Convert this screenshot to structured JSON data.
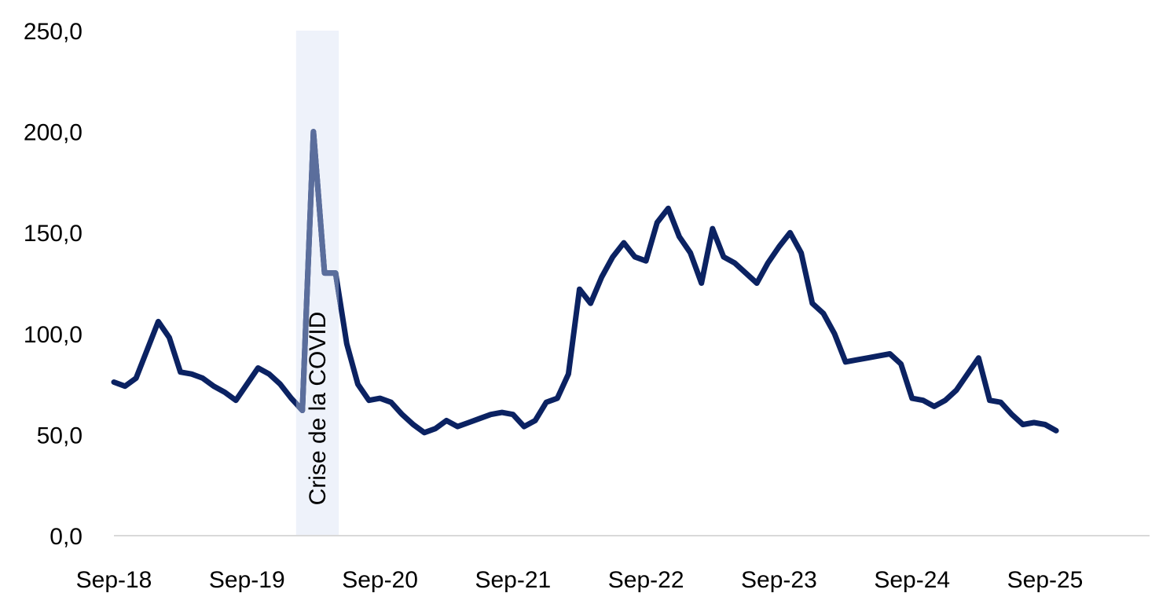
{
  "chart_data": {
    "type": "line",
    "title": "",
    "xlabel": "",
    "ylabel": "",
    "ylim": [
      0,
      250
    ],
    "y_ticks": [
      "0,0",
      "50,0",
      "100,0",
      "150,0",
      "200,0",
      "250,0"
    ],
    "y_tick_values": [
      0,
      50,
      100,
      150,
      200,
      250
    ],
    "x_ticks": [
      "Sep-18",
      "Sep-19",
      "Sep-20",
      "Sep-21",
      "Sep-22",
      "Sep-23",
      "Sep-24",
      "Sep-25"
    ],
    "x_tick_values": [
      "2018-09",
      "2019-09",
      "2020-09",
      "2021-09",
      "2022-09",
      "2023-09",
      "2024-09",
      "2025-09"
    ],
    "grid": false,
    "legend": "none",
    "colors": {
      "line": "#0b2262",
      "highlight_line": "#5b6e9c",
      "band": "#eef2fa"
    },
    "annotation": {
      "text": "Crise de la COVID",
      "start": "2020-02",
      "end": "2020-05"
    },
    "series": [
      {
        "x": [
          "2018-09",
          "2018-10",
          "2018-11",
          "2018-12",
          "2019-01",
          "2019-02",
          "2019-03",
          "2019-04",
          "2019-05",
          "2019-06",
          "2019-07",
          "2019-08",
          "2019-09",
          "2019-10",
          "2019-11",
          "2019-12",
          "2020-01",
          "2020-02",
          "2020-03",
          "2020-04",
          "2020-05",
          "2020-06",
          "2020-07",
          "2020-08",
          "2020-09",
          "2020-10",
          "2020-11",
          "2020-12",
          "2021-01",
          "2021-02",
          "2021-03",
          "2021-04",
          "2021-05",
          "2021-06",
          "2021-07",
          "2021-08",
          "2021-09",
          "2021-10",
          "2021-11",
          "2021-12",
          "2022-01",
          "2022-02",
          "2022-03",
          "2022-04",
          "2022-05",
          "2022-06",
          "2022-07",
          "2022-08",
          "2022-09",
          "2022-10",
          "2022-11",
          "2022-12",
          "2023-01",
          "2023-02",
          "2023-03",
          "2023-04",
          "2023-05",
          "2023-06",
          "2023-07",
          "2023-08",
          "2023-09",
          "2023-10",
          "2023-11",
          "2023-12",
          "2024-01",
          "2024-02",
          "2024-03",
          "2024-04",
          "2024-05",
          "2024-06",
          "2024-07",
          "2024-08",
          "2024-09",
          "2024-10",
          "2024-11",
          "2024-12",
          "2025-01",
          "2025-02",
          "2025-03",
          "2025-04",
          "2025-05",
          "2025-06",
          "2025-07",
          "2025-08",
          "2025-09",
          "2025-10"
        ],
        "values": [
          76,
          74,
          78,
          92,
          106,
          98,
          81,
          80,
          78,
          74,
          71,
          67,
          75,
          83,
          80,
          75,
          68,
          62,
          200,
          130,
          130,
          95,
          75,
          67,
          68,
          66,
          60,
          55,
          51,
          53,
          57,
          54,
          56,
          58,
          60,
          61,
          60,
          54,
          57,
          66,
          68,
          80,
          122,
          115,
          128,
          138,
          145,
          138,
          136,
          155,
          162,
          148,
          140,
          125,
          152,
          138,
          135,
          130,
          125,
          135,
          143,
          150,
          140,
          115,
          110,
          100,
          86,
          87,
          88,
          89,
          90,
          85,
          68,
          67,
          64,
          67,
          72,
          80,
          88,
          67,
          66,
          60,
          55,
          56,
          55,
          52
        ]
      }
    ]
  }
}
